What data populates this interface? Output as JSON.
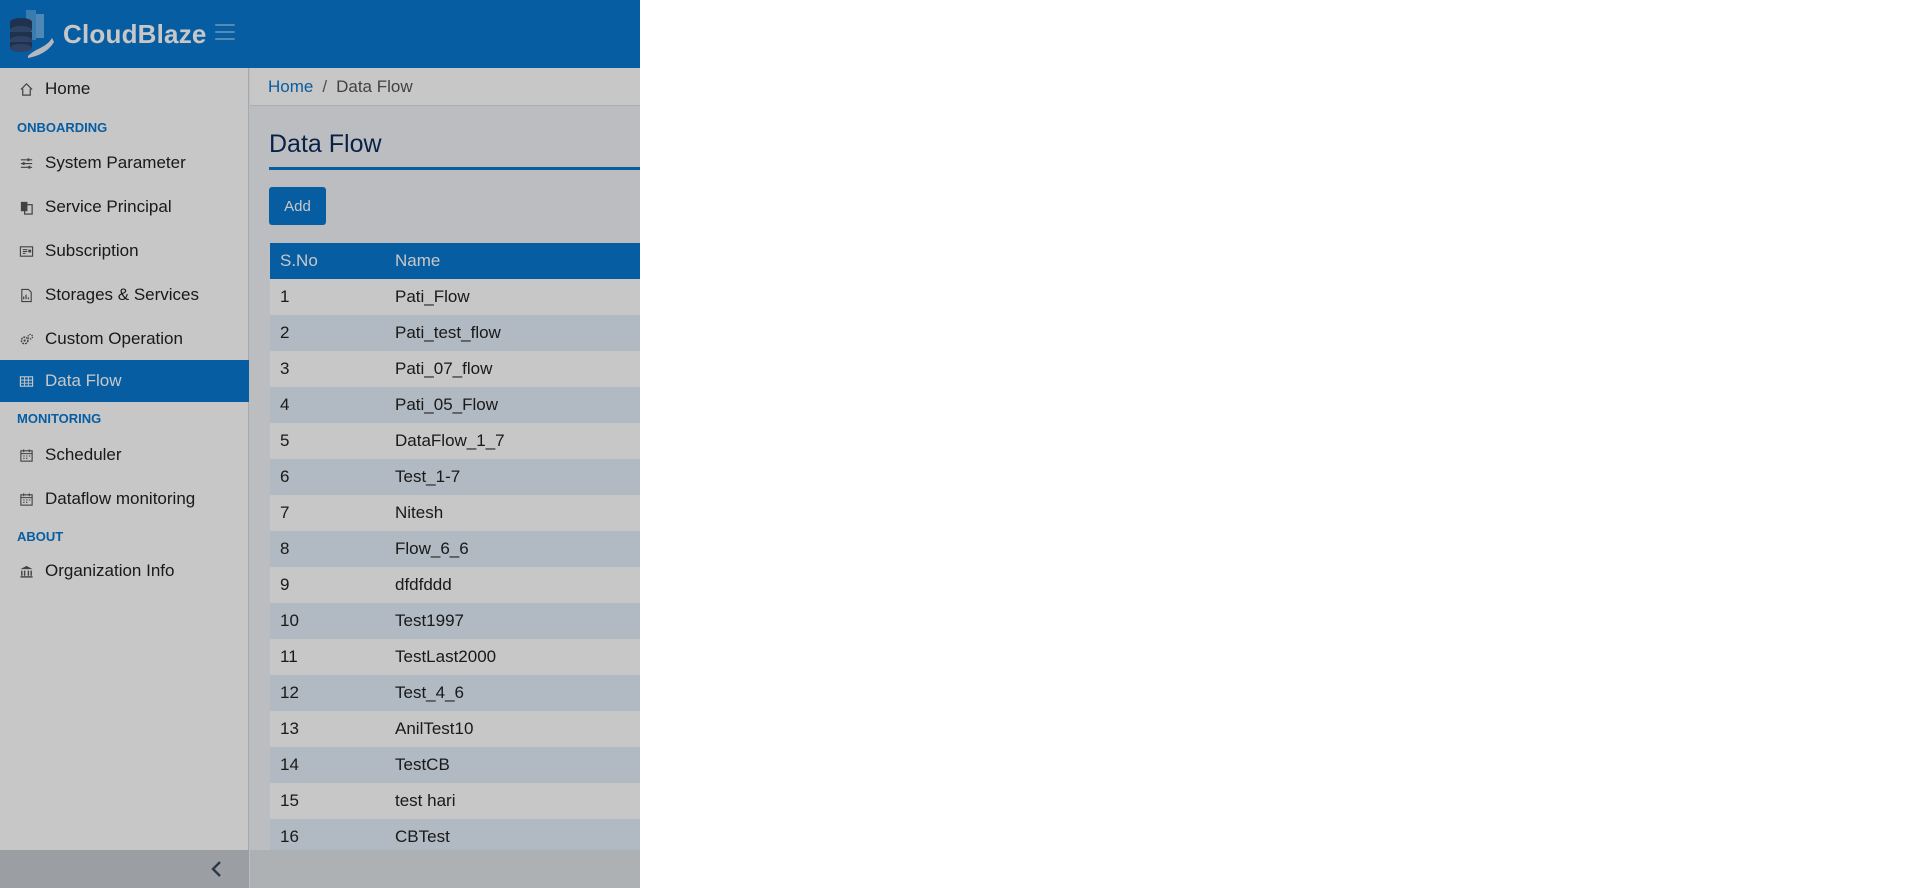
{
  "header": {
    "brand": "CloudBlaze"
  },
  "sidebar": {
    "items": [
      {
        "label": "Home",
        "icon": "home-icon"
      },
      {
        "label": "System Parameter",
        "icon": "sliders-icon"
      },
      {
        "label": "Service Principal",
        "icon": "copy-icon"
      },
      {
        "label": "Subscription",
        "icon": "card-icon"
      },
      {
        "label": "Storages & Services",
        "icon": "file-chart-icon"
      },
      {
        "label": "Custom Operation",
        "icon": "gears-icon"
      },
      {
        "label": "Data Flow",
        "icon": "table-icon",
        "active": true
      },
      {
        "label": "Scheduler",
        "icon": "calendar-icon"
      },
      {
        "label": "Dataflow monitoring",
        "icon": "calendar-icon"
      },
      {
        "label": "Organization Info",
        "icon": "bank-icon"
      }
    ],
    "sections": [
      "ONBOARDING",
      "MONITORING",
      "ABOUT"
    ]
  },
  "breadcrumb": {
    "home": "Home",
    "separator": "/",
    "current": "Data Flow"
  },
  "page": {
    "title": "Data Flow",
    "add_label": "Add"
  },
  "table": {
    "columns": [
      "S.No",
      "Name"
    ],
    "rows": [
      [
        "1",
        "Pati_Flow"
      ],
      [
        "2",
        "Pati_test_flow"
      ],
      [
        "3",
        "Pati_07_flow"
      ],
      [
        "4",
        "Pati_05_Flow"
      ],
      [
        "5",
        "DataFlow_1_7"
      ],
      [
        "6",
        "Test_1-7"
      ],
      [
        "7",
        "Nitesh"
      ],
      [
        "8",
        "Flow_6_6"
      ],
      [
        "9",
        "dfdfddd"
      ],
      [
        "10",
        "Test1997"
      ],
      [
        "11",
        "TestLast2000"
      ],
      [
        "12",
        "Test_4_6"
      ],
      [
        "13",
        "AnilTest10"
      ],
      [
        "14",
        "TestCB"
      ],
      [
        "15",
        "test hari"
      ],
      [
        "16",
        "CBTest"
      ]
    ]
  },
  "colors": {
    "primary": "#0a78cf",
    "row_alt": "#e3eefa",
    "title": "#0d2b5a"
  }
}
